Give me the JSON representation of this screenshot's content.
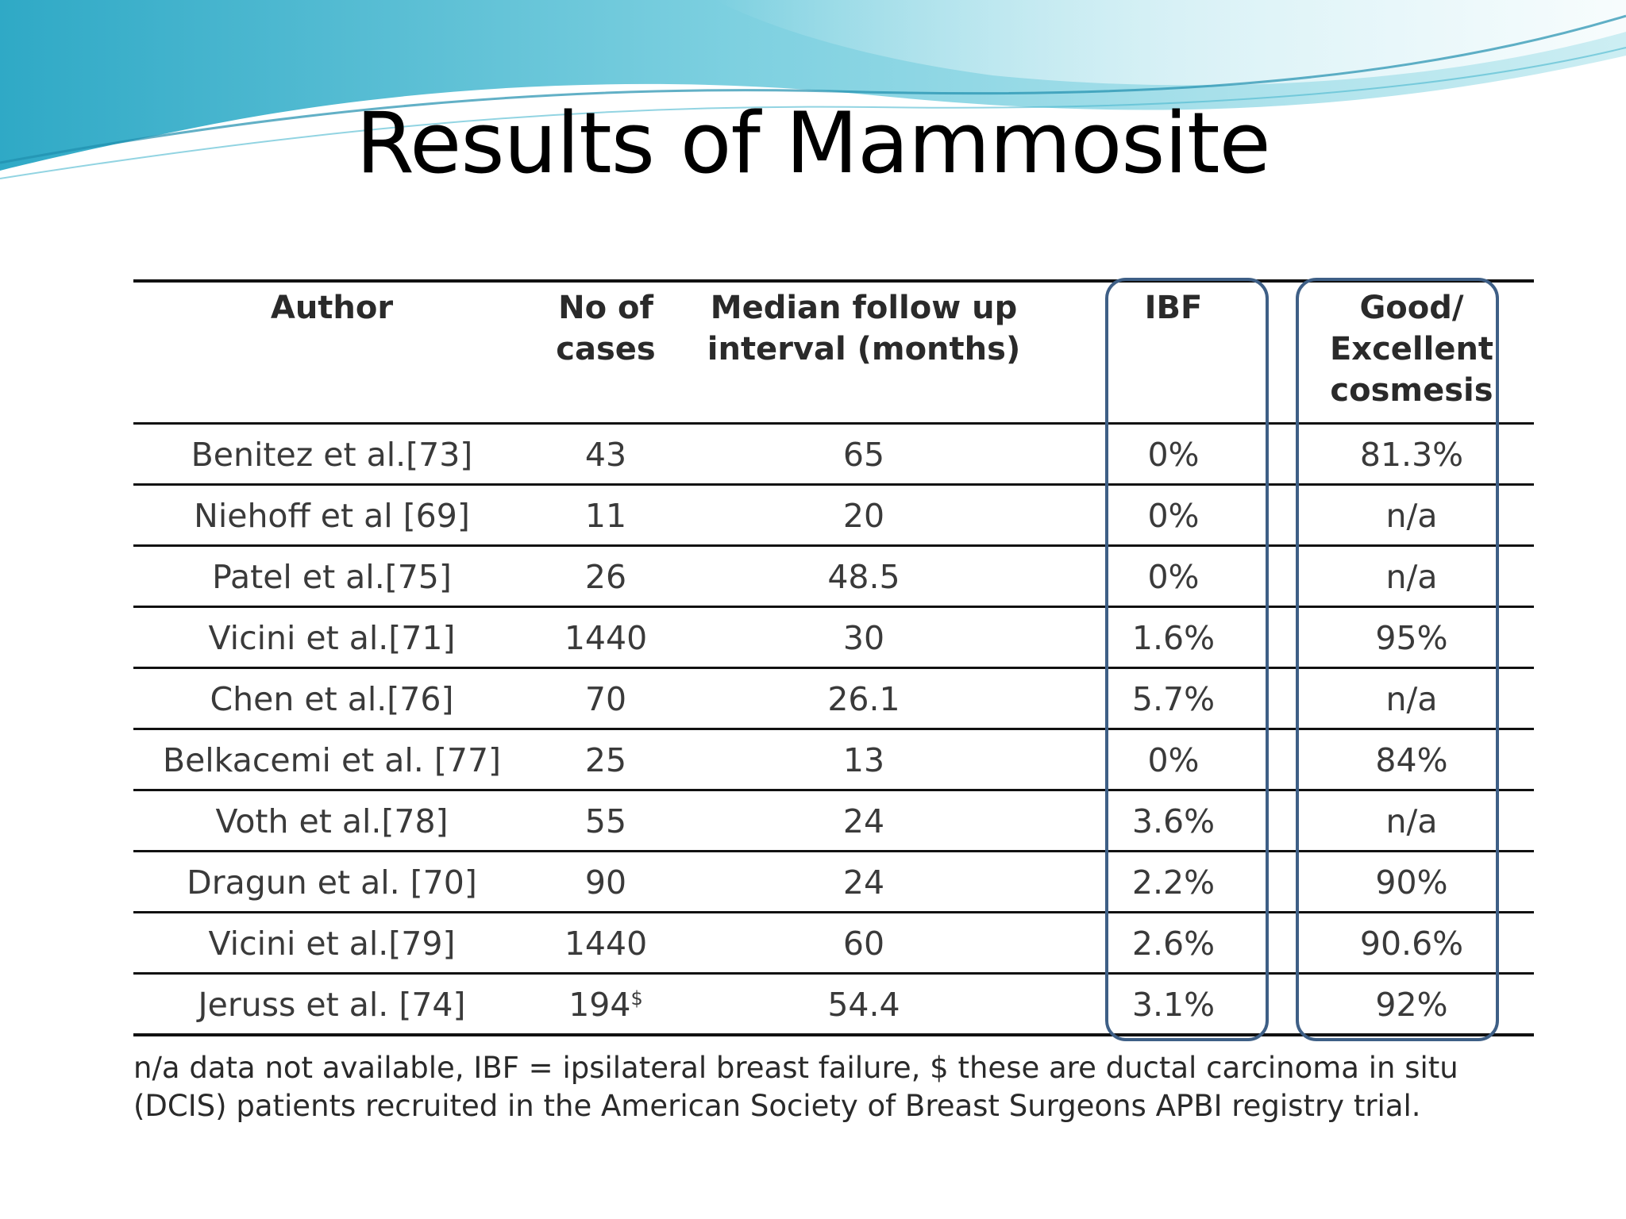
{
  "slide": {
    "title": "Results of Mammosite"
  },
  "table": {
    "headers": {
      "author": "Author",
      "cases": "No of\ncases",
      "followup": "Median follow up\ninterval (months)",
      "ibf": "IBF",
      "cosmesis": "Good/\nExcellent\ncosmesis"
    },
    "rows": [
      {
        "author": "Benitez et al.[73]",
        "cases": "43",
        "followup": "65",
        "ibf": "0%",
        "cosmesis": "81.3%"
      },
      {
        "author": "Niehoff et al [69]",
        "cases": "11",
        "followup": "20",
        "ibf": "0%",
        "cosmesis": "n/a"
      },
      {
        "author": "Patel et al.[75]",
        "cases": "26",
        "followup": "48.5",
        "ibf": "0%",
        "cosmesis": "n/a"
      },
      {
        "author": "Vicini et al.[71]",
        "cases": "1440",
        "followup": "30",
        "ibf": "1.6%",
        "cosmesis": "95%"
      },
      {
        "author": "Chen et al.[76]",
        "cases": "70",
        "followup": "26.1",
        "ibf": "5.7%",
        "cosmesis": "n/a"
      },
      {
        "author": "Belkacemi et al. [77]",
        "cases": "25",
        "followup": "13",
        "ibf": "0%",
        "cosmesis": "84%"
      },
      {
        "author": "Voth et al.[78]",
        "cases": "55",
        "followup": "24",
        "ibf": "3.6%",
        "cosmesis": "n/a"
      },
      {
        "author": "Dragun et al. [70]",
        "cases": "90",
        "followup": "24",
        "ibf": "2.2%",
        "cosmesis": "90%"
      },
      {
        "author": "Vicini et al.[79]",
        "cases": "1440",
        "followup": "60",
        "ibf": "2.6%",
        "cosmesis": "90.6%"
      },
      {
        "author": "Jeruss et al. [74]",
        "cases": "194",
        "cases_superscript": "$",
        "followup": "54.4",
        "ibf": "3.1%",
        "cosmesis": "92%"
      }
    ],
    "footnote": "n/a data not available, IBF = ipsilateral breast failure, $ these are ductal carcinoma in situ (DCIS) patients recruited in the American Society of Breast Surgeons APBI registry trial."
  },
  "colors": {
    "highlight_border": "#3e5f86",
    "wave_primary": "#5bc2d8",
    "wave_light": "#bfe6ee"
  }
}
